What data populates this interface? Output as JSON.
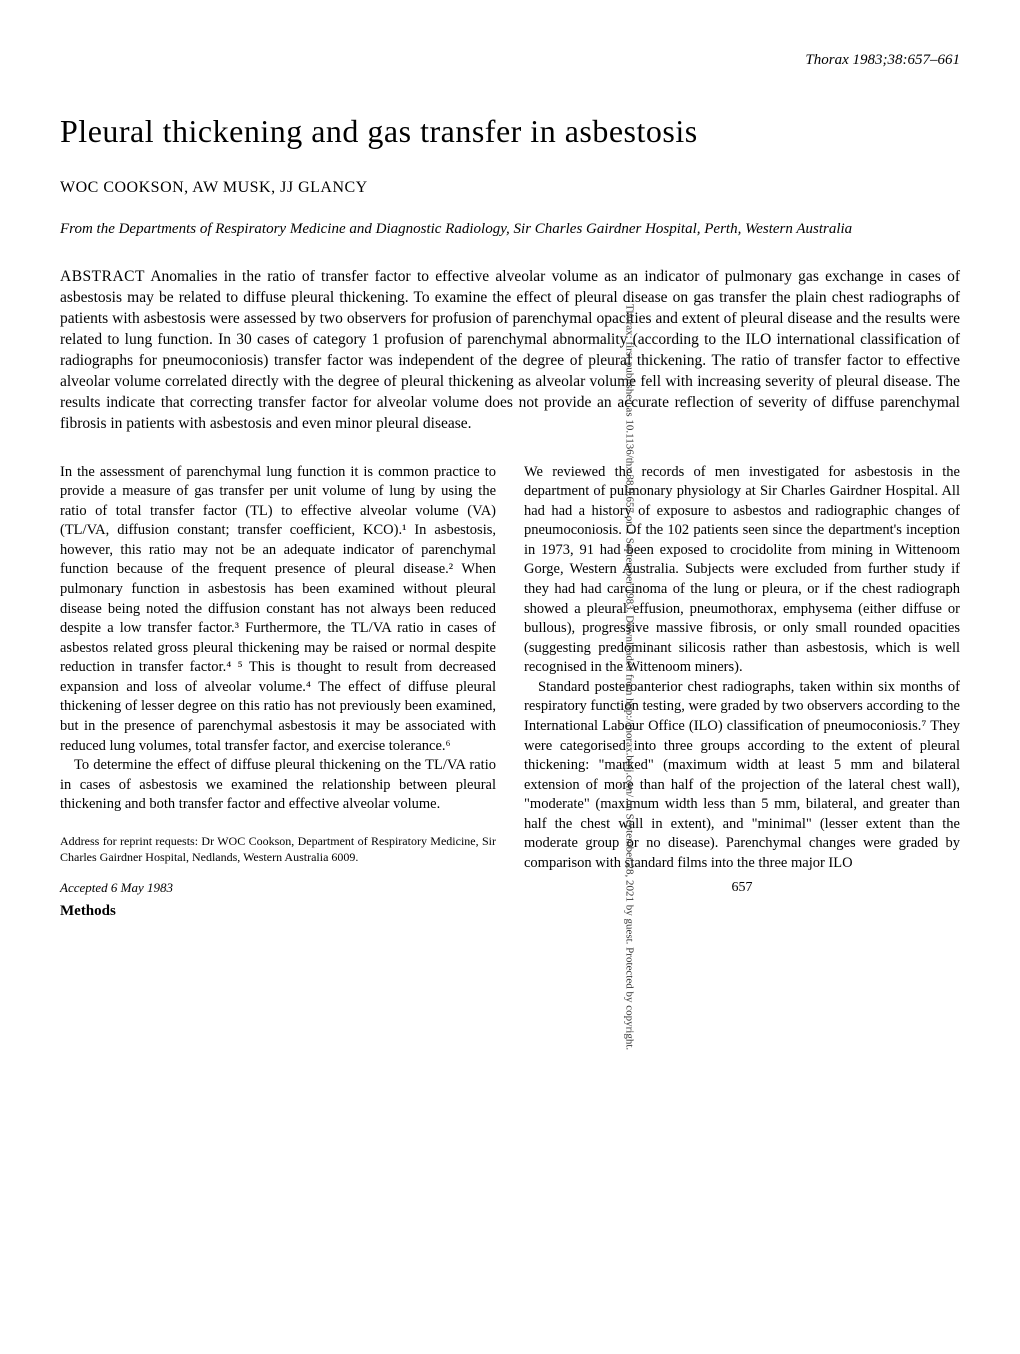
{
  "header": {
    "journal_ref": "Thorax 1983;38:657–661"
  },
  "title": "Pleural thickening and gas transfer in asbestosis",
  "authors": "WOC COOKSON, AW MUSK, JJ GLANCY",
  "affiliation": "From the Departments of Respiratory Medicine and Diagnostic Radiology, Sir Charles Gairdner Hospital, Perth, Western Australia",
  "abstract": {
    "label": "ABSTRACT",
    "text": "Anomalies in the ratio of transfer factor to effective alveolar volume as an indicator of pulmonary gas exchange in cases of asbestosis may be related to diffuse pleural thickening. To examine the effect of pleural disease on gas transfer the plain chest radiographs of patients with asbestosis were assessed by two observers for profusion of parenchymal opacities and extent of pleural disease and the results were related to lung function. In 30 cases of category 1 profusion of parenchymal abnormality (according to the ILO international classification of radiographs for pneumoconiosis) transfer factor was independent of the degree of pleural thickening. The ratio of transfer factor to effective alveolar volume correlated directly with the degree of pleural thickening as alveolar volume fell with increasing severity of pleural disease. The results indicate that correcting transfer factor for alveolar volume does not provide an accurate reflection of severity of diffuse parenchymal fibrosis in patients with asbestosis and even minor pleural disease."
  },
  "body": {
    "intro_p1": "In the assessment of parenchymal lung function it is common practice to provide a measure of gas transfer per unit volume of lung by using the ratio of total transfer factor (TL) to effective alveolar volume (VA) (TL/VA, diffusion constant; transfer coefficient, KCO).¹ In asbestosis, however, this ratio may not be an adequate indicator of parenchymal function because of the frequent presence of pleural disease.² When pulmonary function in asbestosis has been examined without pleural disease being noted the diffusion constant has not always been reduced despite a low transfer factor.³ Furthermore, the TL/VA ratio in cases of asbestos related gross pleural thickening may be raised or normal despite reduction in transfer factor.⁴ ⁵ This is thought to result from decreased expansion and loss of alveolar volume.⁴ The effect of diffuse pleural thickening of lesser degree on this ratio has not previously been examined, but in the presence of parenchymal asbestosis it may be associated with reduced lung volumes, total transfer factor, and exercise tolerance.⁶",
    "intro_p2": "To determine the effect of diffuse pleural thickening on the TL/VA ratio in cases of asbestosis we examined the relationship between pleural thickening and both transfer factor and effective alveolar volume.",
    "reprint": "Address for reprint requests: Dr WOC Cookson, Department of Respiratory Medicine, Sir Charles Gairdner Hospital, Nedlands, Western Australia 6009.",
    "accepted": "Accepted 6 May 1983",
    "methods_heading": "Methods",
    "methods_p1": "We reviewed the records of men investigated for asbestosis in the department of pulmonary physiology at Sir Charles Gairdner Hospital. All had had a history of exposure to asbestos and radiographic changes of pneumoconiosis. Of the 102 patients seen since the department's inception in 1973, 91 had been exposed to crocidolite from mining in Wittenoom Gorge, Western Australia. Subjects were excluded from further study if they had had carcinoma of the lung or pleura, or if the chest radiograph showed a pleural effusion, pneumothorax, emphysema (either diffuse or bullous), progressive massive fibrosis, or only small rounded opacities (suggesting predominant silicosis rather than asbestosis, which is well recognised in the Wittenoom miners).",
    "methods_p2": "Standard posteroanterior chest radiographs, taken within six months of respiratory function testing, were graded by two observers according to the International Labour Office (ILO) classification of pneumoconiosis.⁷ They were categorised into three groups according to the extent of pleural thickening: \"marked\" (maximum width at least 5 mm and bilateral extension of more than half of the projection of the lateral chest wall), \"moderate\" (maximum width less than 5 mm, bilateral, and greater than half the chest wall in extent), and \"minimal\" (lesser extent than the moderate group or no disease). Parenchymal changes were graded by comparison with standard films into the three major ILO"
  },
  "page_number": "657",
  "sidebar": "Thorax: first published as 10.1136/thx.38.9.657 on 1 September 1983. Downloaded from http://thorax.bmj.com/ on September 28, 2021 by guest. Protected by copyright."
}
